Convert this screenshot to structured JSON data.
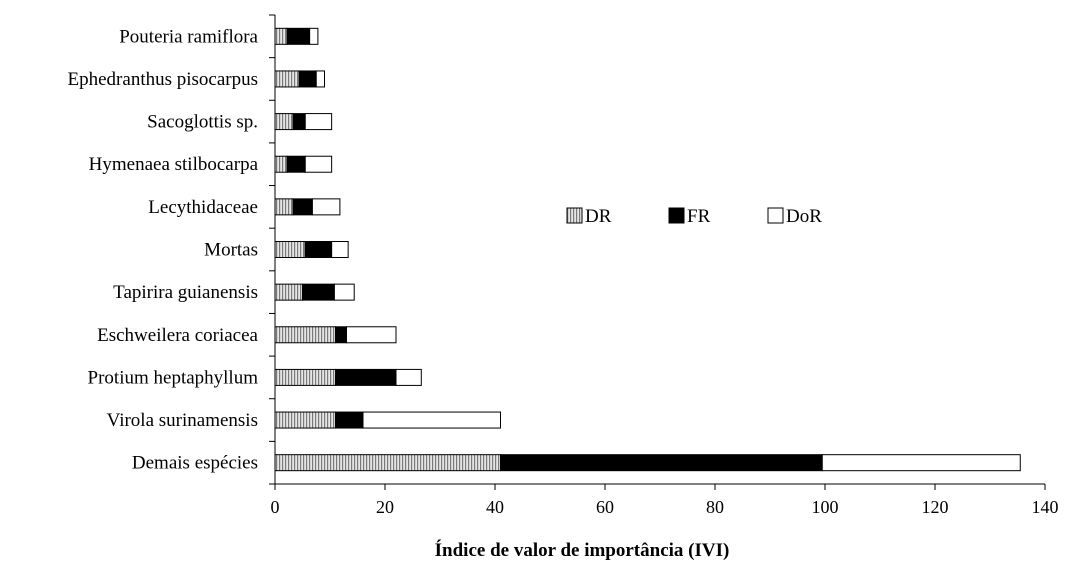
{
  "chart_data": {
    "type": "bar",
    "orientation": "horizontal",
    "stacked": true,
    "title": "",
    "xlabel": "Índice de valor de importância (IVI)",
    "ylabel": "",
    "xlim": [
      0,
      140
    ],
    "xticks": [
      "0",
      "20",
      "40",
      "60",
      "80",
      "100",
      "120",
      "140"
    ],
    "grid": false,
    "legend_position": "center-right",
    "categories": [
      "Pouteria ramiflora",
      "Ephedranthus pisocarpus",
      "Sacoglottis sp.",
      "Hymenaea stilbocarpa",
      "Lecythidaceae",
      "Mortas",
      "Tapirira guianensis",
      "Eschweilera coriacea",
      "Protium heptaphyllum",
      "Virola surinamensis",
      "Demais espécies"
    ],
    "series": [
      {
        "name": "DR",
        "color": "#bbbbbb",
        "pattern": "vertical-hatch",
        "values": [
          2.2,
          4.4,
          3.3,
          2.2,
          3.3,
          5.5,
          5.0,
          11.0,
          11.0,
          11.0,
          41.0
        ]
      },
      {
        "name": "FR",
        "color": "#000000",
        "pattern": "solid",
        "values": [
          4.1,
          3.1,
          2.2,
          3.3,
          3.5,
          4.8,
          5.8,
          2.0,
          11.0,
          5.0,
          58.5
        ]
      },
      {
        "name": "DoR",
        "color": "#ffffff",
        "pattern": "outline",
        "values": [
          1.5,
          1.5,
          4.8,
          4.8,
          5.0,
          3.0,
          3.6,
          9.0,
          4.6,
          25.0,
          36.0
        ]
      }
    ]
  }
}
